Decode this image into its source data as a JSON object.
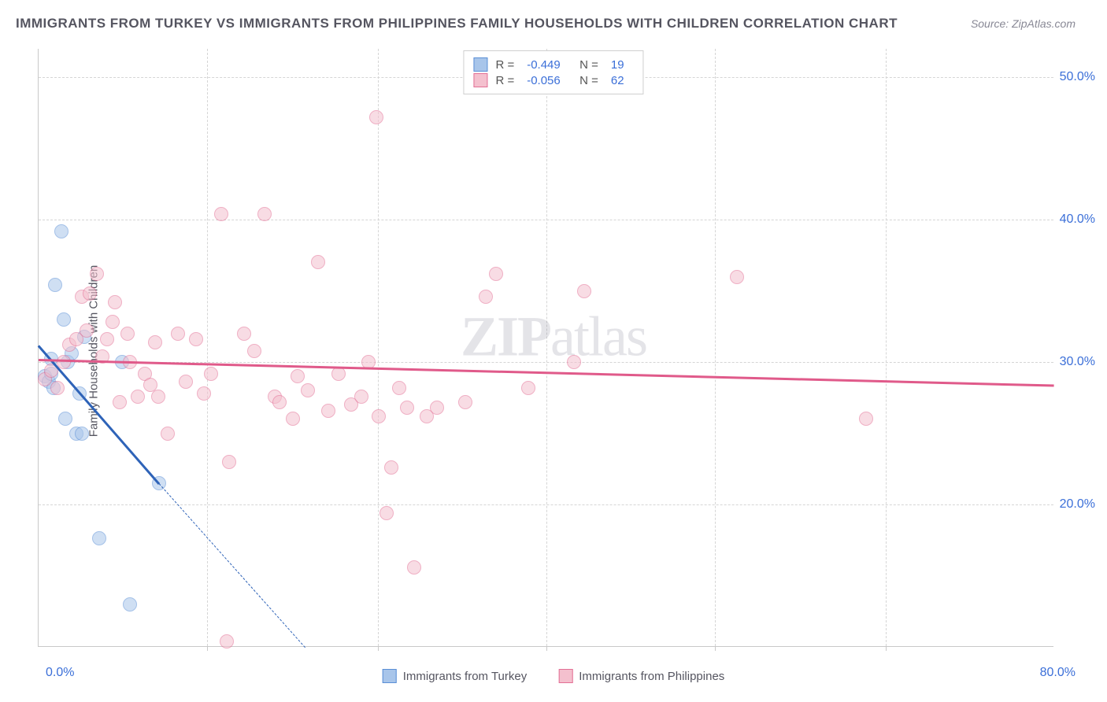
{
  "title": "IMMIGRANTS FROM TURKEY VS IMMIGRANTS FROM PHILIPPINES FAMILY HOUSEHOLDS WITH CHILDREN CORRELATION CHART",
  "source": "Source: ZipAtlas.com",
  "ylabel": "Family Households with Children",
  "watermark_bold": "ZIP",
  "watermark_thin": "atlas",
  "chart": {
    "type": "scatter",
    "xlim": [
      0,
      80
    ],
    "ylim": [
      10,
      52
    ],
    "xticks_labels": [
      "0.0%",
      "80.0%"
    ],
    "yticks": [
      20,
      30,
      40,
      50
    ],
    "ytick_labels": [
      "20.0%",
      "30.0%",
      "40.0%",
      "50.0%"
    ],
    "xgrid_at": [
      13.3,
      26.7,
      40.0,
      53.3,
      66.7
    ],
    "background_color": "#ffffff",
    "grid_color": "#d5d5d5",
    "axis_color": "#c9c9c9",
    "point_radius": 9,
    "point_opacity": 0.55,
    "series": [
      {
        "name": "Immigrants from Turkey",
        "fill": "#a8c5ea",
        "stroke": "#5a8fd6",
        "trend_color": "#2e63b8",
        "R": "-0.449",
        "N": "19",
        "trend": {
          "x1": 0,
          "y1": 31.2,
          "x2": 9.5,
          "y2": 21.5,
          "dash_x2": 21,
          "dash_y2": 10
        },
        "points": [
          [
            0.5,
            29.0
          ],
          [
            0.8,
            28.6
          ],
          [
            1.0,
            30.2
          ],
          [
            1.0,
            29.2
          ],
          [
            1.2,
            28.2
          ],
          [
            1.3,
            35.4
          ],
          [
            1.8,
            39.2
          ],
          [
            2.0,
            33.0
          ],
          [
            2.3,
            30.0
          ],
          [
            2.1,
            26.0
          ],
          [
            2.6,
            30.6
          ],
          [
            3.2,
            27.8
          ],
          [
            3.0,
            25.0
          ],
          [
            3.4,
            25.0
          ],
          [
            3.6,
            31.8
          ],
          [
            4.8,
            17.6
          ],
          [
            6.6,
            30.0
          ],
          [
            7.2,
            13.0
          ],
          [
            9.5,
            21.5
          ]
        ]
      },
      {
        "name": "Immigrants from Philippines",
        "fill": "#f4c0ce",
        "stroke": "#e36f95",
        "trend_color": "#e05a8a",
        "R": "-0.056",
        "N": "62",
        "trend": {
          "x1": 0,
          "y1": 30.2,
          "x2": 80,
          "y2": 28.4
        },
        "points": [
          [
            0.5,
            28.8
          ],
          [
            1.0,
            29.4
          ],
          [
            1.5,
            28.2
          ],
          [
            2.0,
            30.0
          ],
          [
            2.4,
            31.2
          ],
          [
            3.0,
            31.6
          ],
          [
            3.4,
            34.6
          ],
          [
            3.8,
            32.2
          ],
          [
            4.6,
            36.2
          ],
          [
            5.0,
            30.4
          ],
          [
            5.4,
            31.6
          ],
          [
            5.8,
            32.8
          ],
          [
            6.4,
            27.2
          ],
          [
            7.0,
            32.0
          ],
          [
            7.2,
            30.0
          ],
          [
            7.8,
            27.6
          ],
          [
            8.4,
            29.2
          ],
          [
            9.2,
            31.4
          ],
          [
            9.4,
            27.6
          ],
          [
            10.2,
            25.0
          ],
          [
            11.0,
            32.0
          ],
          [
            11.6,
            28.6
          ],
          [
            12.4,
            31.6
          ],
          [
            13.0,
            27.8
          ],
          [
            13.6,
            29.2
          ],
          [
            14.4,
            40.4
          ],
          [
            15.0,
            23.0
          ],
          [
            16.2,
            32.0
          ],
          [
            17.0,
            30.8
          ],
          [
            17.8,
            40.4
          ],
          [
            18.6,
            27.6
          ],
          [
            19.0,
            27.2
          ],
          [
            20.4,
            29.0
          ],
          [
            21.2,
            28.0
          ],
          [
            22.0,
            37.0
          ],
          [
            22.8,
            26.6
          ],
          [
            23.6,
            29.2
          ],
          [
            24.6,
            27.0
          ],
          [
            25.4,
            27.6
          ],
          [
            26.0,
            30.0
          ],
          [
            26.6,
            47.2
          ],
          [
            26.8,
            26.2
          ],
          [
            27.4,
            19.4
          ],
          [
            27.8,
            22.6
          ],
          [
            28.4,
            28.2
          ],
          [
            29.0,
            26.8
          ],
          [
            29.6,
            15.6
          ],
          [
            30.6,
            26.2
          ],
          [
            31.4,
            26.8
          ],
          [
            33.6,
            27.2
          ],
          [
            35.2,
            34.6
          ],
          [
            36.0,
            36.2
          ],
          [
            38.6,
            28.2
          ],
          [
            42.2,
            30.0
          ],
          [
            43.0,
            35.0
          ],
          [
            55.0,
            36.0
          ],
          [
            65.2,
            26.0
          ],
          [
            14.8,
            10.4
          ],
          [
            6.0,
            34.2
          ],
          [
            4.0,
            34.8
          ],
          [
            8.8,
            28.4
          ],
          [
            20.0,
            26.0
          ]
        ]
      }
    ]
  },
  "colors": {
    "label": "#555560",
    "ticks": "#3b6fd8"
  }
}
